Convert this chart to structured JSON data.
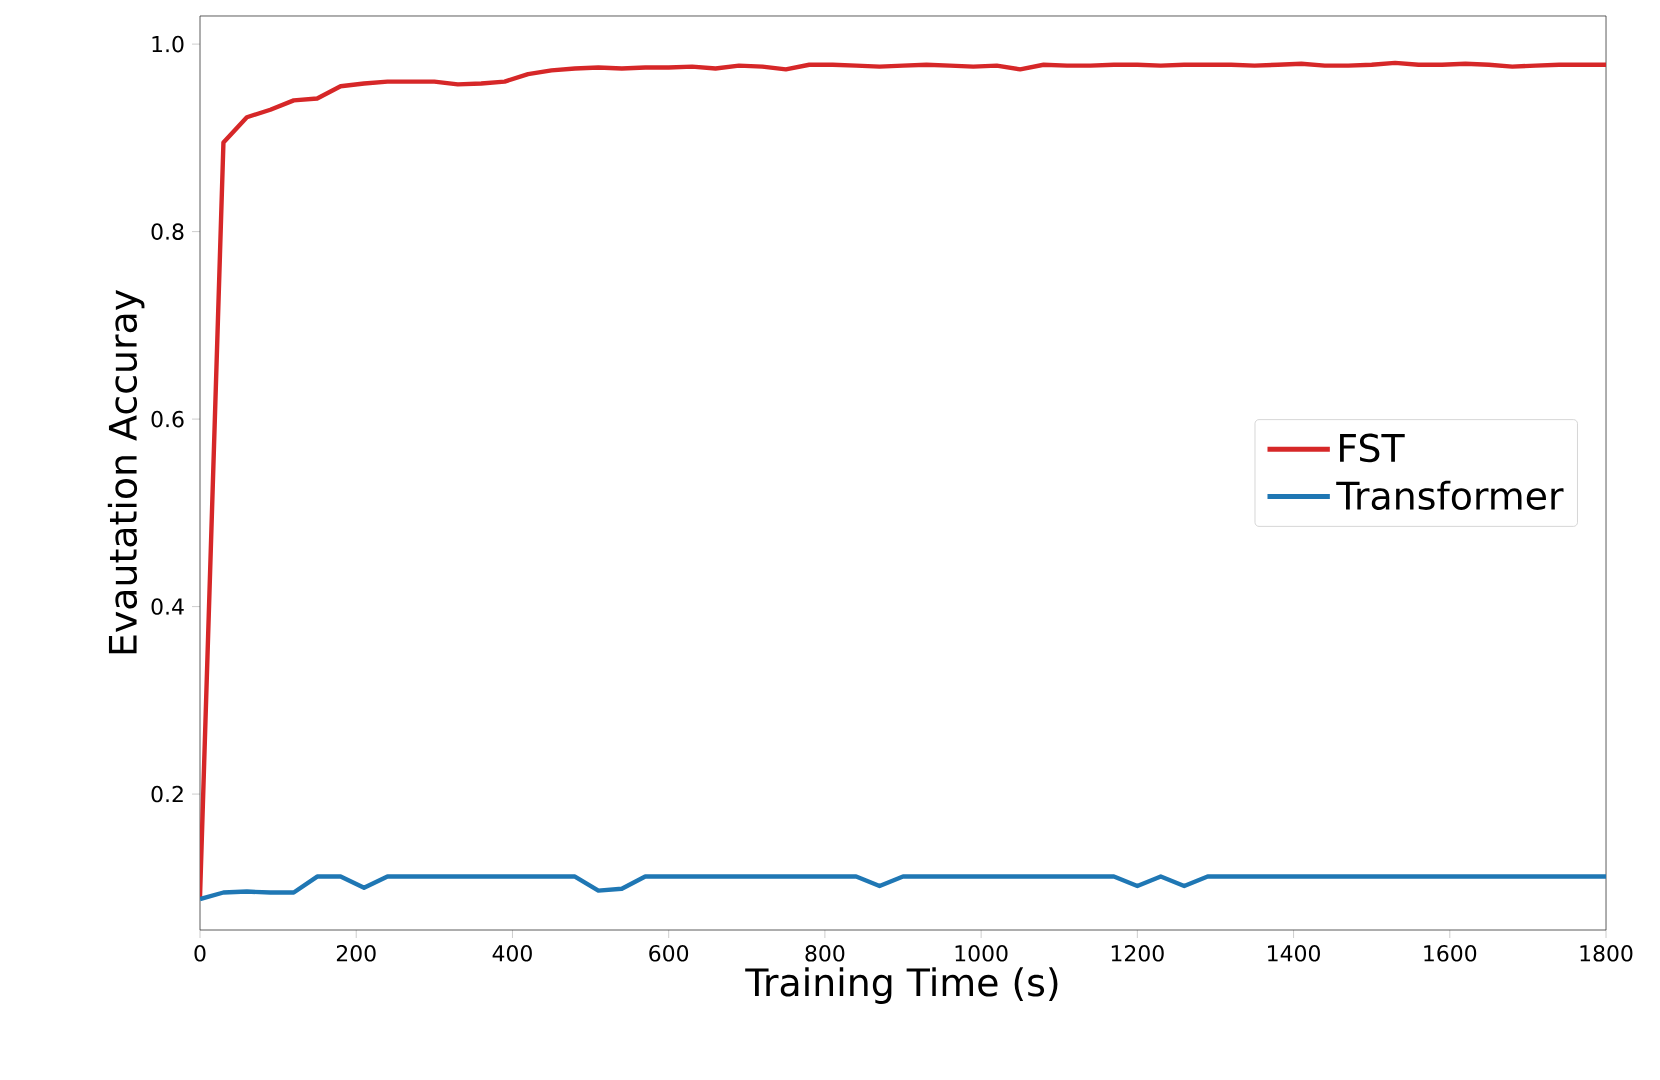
{
  "chart_data": {
    "type": "line",
    "xlabel": "Training Time (s)",
    "ylabel": "Evautation Accuray",
    "xlim": [
      0,
      1800
    ],
    "ylim": [
      0.055,
      1.03
    ],
    "xticks": [
      0,
      200,
      400,
      600,
      800,
      1000,
      1200,
      1400,
      1600,
      1800
    ],
    "yticks": [
      0.2,
      0.4,
      0.6,
      0.8,
      {
        "value": 1,
        "label": "1.0"
      }
    ],
    "legend": "right",
    "grid": false,
    "marker": "none",
    "line_style": "solid",
    "series": [
      {
        "name": "FST",
        "color": "#d62728",
        "x": [
          0,
          30,
          60,
          90,
          120,
          150,
          180,
          210,
          240,
          270,
          300,
          330,
          360,
          390,
          420,
          450,
          480,
          510,
          540,
          570,
          600,
          630,
          660,
          690,
          720,
          750,
          780,
          810,
          840,
          870,
          900,
          930,
          960,
          990,
          1020,
          1050,
          1080,
          1110,
          1140,
          1170,
          1200,
          1230,
          1260,
          1290,
          1320,
          1350,
          1380,
          1410,
          1440,
          1470,
          1500,
          1530,
          1560,
          1590,
          1620,
          1650,
          1680,
          1710,
          1740,
          1770,
          1800
        ],
        "values": [
          0.09,
          0.895,
          0.922,
          0.93,
          0.94,
          0.942,
          0.955,
          0.958,
          0.96,
          0.96,
          0.96,
          0.957,
          0.958,
          0.96,
          0.968,
          0.972,
          0.974,
          0.975,
          0.974,
          0.975,
          0.975,
          0.976,
          0.974,
          0.977,
          0.976,
          0.973,
          0.978,
          0.978,
          0.977,
          0.976,
          0.977,
          0.978,
          0.977,
          0.976,
          0.977,
          0.973,
          0.978,
          0.977,
          0.977,
          0.978,
          0.978,
          0.977,
          0.978,
          0.978,
          0.978,
          0.977,
          0.978,
          0.979,
          0.977,
          0.977,
          0.978,
          0.98,
          0.978,
          0.978,
          0.979,
          0.978,
          0.976,
          0.977,
          0.978,
          0.978,
          0.978
        ]
      },
      {
        "name": "Transformer",
        "color": "#1f77b4",
        "x": [
          0,
          30,
          60,
          90,
          120,
          150,
          180,
          210,
          240,
          270,
          300,
          330,
          360,
          390,
          420,
          450,
          480,
          510,
          540,
          570,
          600,
          630,
          660,
          690,
          720,
          750,
          780,
          810,
          840,
          870,
          900,
          930,
          960,
          990,
          1020,
          1050,
          1080,
          1110,
          1140,
          1170,
          1200,
          1230,
          1260,
          1290,
          1320,
          1350,
          1380,
          1410,
          1440,
          1470,
          1500,
          1530,
          1560,
          1590,
          1620,
          1650,
          1680,
          1710,
          1740,
          1770,
          1800
        ],
        "values": [
          0.088,
          0.095,
          0.096,
          0.095,
          0.095,
          0.112,
          0.112,
          0.1,
          0.112,
          0.112,
          0.112,
          0.112,
          0.112,
          0.112,
          0.112,
          0.112,
          0.112,
          0.097,
          0.099,
          0.112,
          0.112,
          0.112,
          0.112,
          0.112,
          0.112,
          0.112,
          0.112,
          0.112,
          0.112,
          0.102,
          0.112,
          0.112,
          0.112,
          0.112,
          0.112,
          0.112,
          0.112,
          0.112,
          0.112,
          0.112,
          0.102,
          0.112,
          0.102,
          0.112,
          0.112,
          0.112,
          0.112,
          0.112,
          0.112,
          0.112,
          0.112,
          0.112,
          0.112,
          0.112,
          0.112,
          0.112,
          0.112,
          0.112,
          0.112,
          0.112,
          0.112
        ]
      }
    ]
  }
}
